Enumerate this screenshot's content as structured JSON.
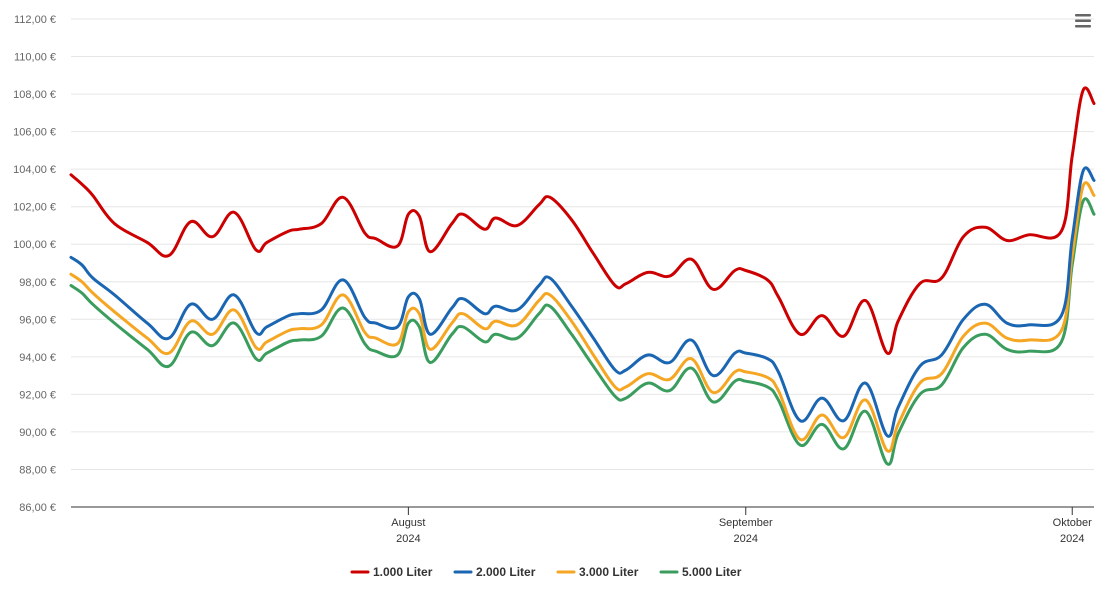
{
  "menu": {
    "icon": "hamburger-menu-icon"
  },
  "chart_data": {
    "type": "line",
    "title": "",
    "xlabel": "",
    "ylabel": "",
    "ylim": [
      86,
      112
    ],
    "y_ticks": [
      "86,00 €",
      "88,00 €",
      "90,00 €",
      "92,00 €",
      "94,00 €",
      "96,00 €",
      "98,00 €",
      "100,00 €",
      "102,00 €",
      "104,00 €",
      "106,00 €",
      "108,00 €",
      "110,00 €",
      "112,00 €"
    ],
    "x_ticks": [
      {
        "month": "August",
        "year": "2024",
        "date": "2024-08-01"
      },
      {
        "month": "September",
        "year": "2024",
        "date": "2024-09-01"
      },
      {
        "month": "Oktober",
        "year": "2024",
        "date": "2024-10-01"
      }
    ],
    "x_range": [
      "2024-07-01",
      "2024-10-03"
    ],
    "grid": true,
    "legend": "bottom-center",
    "series": [
      {
        "name": "1.000 Liter",
        "color": "#cc0000",
        "x": [
          "2024-07-01",
          "2024-07-02",
          "2024-07-03",
          "2024-07-05",
          "2024-07-08",
          "2024-07-10",
          "2024-07-12",
          "2024-07-14",
          "2024-07-16",
          "2024-07-18",
          "2024-07-19",
          "2024-07-21",
          "2024-07-22",
          "2024-07-24",
          "2024-07-26",
          "2024-07-28",
          "2024-07-29",
          "2024-07-31",
          "2024-08-01",
          "2024-08-02",
          "2024-08-03",
          "2024-08-05",
          "2024-08-06",
          "2024-08-08",
          "2024-08-09",
          "2024-08-11",
          "2024-08-13",
          "2024-08-14",
          "2024-08-16",
          "2024-08-18",
          "2024-08-20",
          "2024-08-21",
          "2024-08-23",
          "2024-08-25",
          "2024-08-27",
          "2024-08-29",
          "2024-08-31",
          "2024-09-01",
          "2024-09-03",
          "2024-09-04",
          "2024-09-06",
          "2024-09-08",
          "2024-09-10",
          "2024-09-12",
          "2024-09-14",
          "2024-09-15",
          "2024-09-17",
          "2024-09-19",
          "2024-09-21",
          "2024-09-23",
          "2024-09-25",
          "2024-09-27",
          "2024-09-30",
          "2024-10-01",
          "2024-10-02",
          "2024-10-03"
        ],
        "values": [
          103.7,
          103.2,
          102.6,
          101.1,
          100.1,
          99.4,
          101.2,
          100.4,
          101.7,
          99.7,
          100.1,
          100.7,
          100.8,
          101.1,
          102.5,
          100.6,
          100.3,
          99.9,
          101.6,
          101.5,
          99.6,
          101.1,
          101.6,
          100.8,
          101.4,
          101.0,
          102.1,
          102.5,
          101.3,
          99.5,
          97.8,
          97.9,
          98.5,
          98.3,
          99.2,
          97.6,
          98.6,
          98.6,
          98.1,
          97.2,
          95.2,
          96.2,
          95.1,
          97.0,
          94.2,
          95.9,
          97.9,
          98.2,
          100.4,
          100.9,
          100.2,
          100.5,
          100.7,
          104.7,
          108.2,
          107.5
        ],
        "label_values": []
      },
      {
        "name": "2.000 Liter",
        "color": "#1a66b2",
        "x": [
          "2024-07-01",
          "2024-07-02",
          "2024-07-03",
          "2024-07-05",
          "2024-07-08",
          "2024-07-10",
          "2024-07-12",
          "2024-07-14",
          "2024-07-16",
          "2024-07-18",
          "2024-07-19",
          "2024-07-21",
          "2024-07-22",
          "2024-07-24",
          "2024-07-26",
          "2024-07-28",
          "2024-07-29",
          "2024-07-31",
          "2024-08-01",
          "2024-08-02",
          "2024-08-03",
          "2024-08-05",
          "2024-08-06",
          "2024-08-08",
          "2024-08-09",
          "2024-08-11",
          "2024-08-13",
          "2024-08-14",
          "2024-08-16",
          "2024-08-18",
          "2024-08-20",
          "2024-08-21",
          "2024-08-23",
          "2024-08-25",
          "2024-08-27",
          "2024-08-29",
          "2024-08-31",
          "2024-09-01",
          "2024-09-03",
          "2024-09-04",
          "2024-09-06",
          "2024-09-08",
          "2024-09-10",
          "2024-09-12",
          "2024-09-14",
          "2024-09-15",
          "2024-09-17",
          "2024-09-19",
          "2024-09-21",
          "2024-09-23",
          "2024-09-25",
          "2024-09-27",
          "2024-09-30",
          "2024-10-01",
          "2024-10-02",
          "2024-10-03"
        ],
        "values": [
          99.3,
          98.9,
          98.2,
          97.3,
          95.8,
          95.0,
          96.8,
          96.0,
          97.3,
          95.3,
          95.6,
          96.2,
          96.3,
          96.5,
          98.1,
          96.1,
          95.8,
          95.6,
          97.2,
          97.1,
          95.2,
          96.6,
          97.1,
          96.3,
          96.7,
          96.5,
          97.8,
          98.2,
          96.7,
          95.0,
          93.3,
          93.3,
          94.1,
          93.7,
          94.9,
          93.0,
          94.2,
          94.2,
          93.9,
          93.2,
          90.6,
          91.8,
          90.6,
          92.6,
          89.8,
          91.3,
          93.5,
          94.1,
          96.0,
          96.8,
          95.8,
          95.7,
          96.2,
          100.3,
          103.9,
          103.4
        ],
        "label_values": []
      },
      {
        "name": "3.000 Liter",
        "color": "#f5a623",
        "x": [
          "2024-07-01",
          "2024-07-02",
          "2024-07-03",
          "2024-07-05",
          "2024-07-08",
          "2024-07-10",
          "2024-07-12",
          "2024-07-14",
          "2024-07-16",
          "2024-07-18",
          "2024-07-19",
          "2024-07-21",
          "2024-07-22",
          "2024-07-24",
          "2024-07-26",
          "2024-07-28",
          "2024-07-29",
          "2024-07-31",
          "2024-08-01",
          "2024-08-02",
          "2024-08-03",
          "2024-08-05",
          "2024-08-06",
          "2024-08-08",
          "2024-08-09",
          "2024-08-11",
          "2024-08-13",
          "2024-08-14",
          "2024-08-16",
          "2024-08-18",
          "2024-08-20",
          "2024-08-21",
          "2024-08-23",
          "2024-08-25",
          "2024-08-27",
          "2024-08-29",
          "2024-08-31",
          "2024-09-01",
          "2024-09-03",
          "2024-09-04",
          "2024-09-06",
          "2024-09-08",
          "2024-09-10",
          "2024-09-12",
          "2024-09-14",
          "2024-09-15",
          "2024-09-17",
          "2024-09-19",
          "2024-09-21",
          "2024-09-23",
          "2024-09-25",
          "2024-09-27",
          "2024-09-30",
          "2024-10-01",
          "2024-10-02",
          "2024-10-03"
        ],
        "values": [
          98.4,
          98.0,
          97.4,
          96.4,
          95.0,
          94.2,
          95.9,
          95.2,
          96.5,
          94.5,
          94.8,
          95.4,
          95.5,
          95.7,
          97.3,
          95.3,
          95.0,
          94.7,
          96.4,
          96.3,
          94.4,
          95.8,
          96.3,
          95.5,
          95.9,
          95.7,
          97.0,
          97.3,
          95.9,
          94.1,
          92.4,
          92.4,
          93.1,
          92.8,
          93.9,
          92.1,
          93.2,
          93.2,
          92.9,
          92.2,
          89.6,
          90.9,
          89.7,
          91.7,
          89.0,
          90.4,
          92.6,
          93.1,
          95.1,
          95.8,
          95.0,
          94.9,
          95.4,
          99.4,
          103.1,
          102.6
        ],
        "label_values": []
      },
      {
        "name": "5.000 Liter",
        "color": "#3a9d5d",
        "x": [
          "2024-07-01",
          "2024-07-02",
          "2024-07-03",
          "2024-07-05",
          "2024-07-08",
          "2024-07-10",
          "2024-07-12",
          "2024-07-14",
          "2024-07-16",
          "2024-07-18",
          "2024-07-19",
          "2024-07-21",
          "2024-07-22",
          "2024-07-24",
          "2024-07-26",
          "2024-07-28",
          "2024-07-29",
          "2024-07-31",
          "2024-08-01",
          "2024-08-02",
          "2024-08-03",
          "2024-08-05",
          "2024-08-06",
          "2024-08-08",
          "2024-08-09",
          "2024-08-11",
          "2024-08-13",
          "2024-08-14",
          "2024-08-16",
          "2024-08-18",
          "2024-08-20",
          "2024-08-21",
          "2024-08-23",
          "2024-08-25",
          "2024-08-27",
          "2024-08-29",
          "2024-08-31",
          "2024-09-01",
          "2024-09-03",
          "2024-09-04",
          "2024-09-06",
          "2024-09-08",
          "2024-09-10",
          "2024-09-12",
          "2024-09-14",
          "2024-09-15",
          "2024-09-17",
          "2024-09-19",
          "2024-09-21",
          "2024-09-23",
          "2024-09-25",
          "2024-09-27",
          "2024-09-30",
          "2024-10-01",
          "2024-10-02",
          "2024-10-03"
        ],
        "values": [
          97.8,
          97.4,
          96.8,
          95.8,
          94.4,
          93.5,
          95.3,
          94.6,
          95.8,
          93.9,
          94.2,
          94.8,
          94.9,
          95.1,
          96.6,
          94.7,
          94.3,
          94.1,
          95.8,
          95.6,
          93.7,
          95.2,
          95.6,
          94.8,
          95.2,
          95.0,
          96.3,
          96.7,
          95.2,
          93.5,
          91.9,
          91.8,
          92.6,
          92.2,
          93.4,
          91.6,
          92.7,
          92.7,
          92.4,
          91.7,
          89.3,
          90.4,
          89.1,
          91.1,
          88.3,
          89.9,
          92.0,
          92.5,
          94.5,
          95.2,
          94.4,
          94.3,
          94.8,
          98.9,
          102.3,
          101.6
        ],
        "label_values": []
      }
    ]
  }
}
